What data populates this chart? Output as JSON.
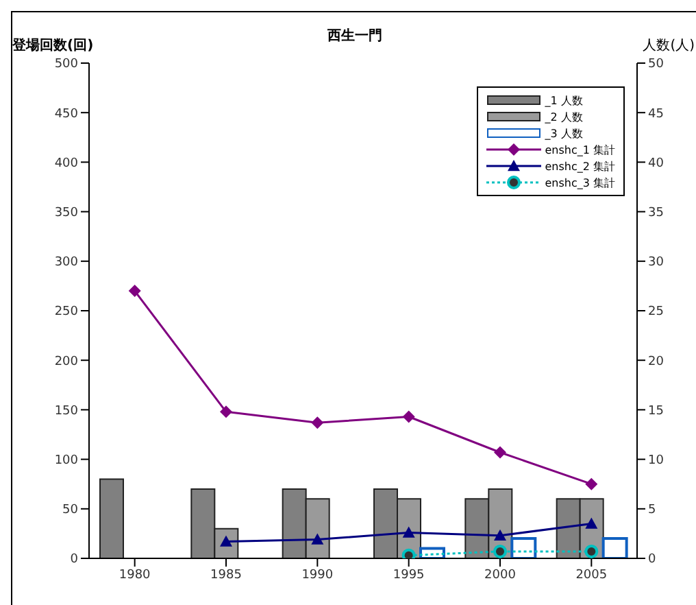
{
  "chart_data": {
    "type": "bar",
    "title": "西生一門",
    "ylabel": "登場回数(回)",
    "y2label": "人数(人)",
    "categories": [
      "1980",
      "1985",
      "1990",
      "1995",
      "2000",
      "2005"
    ],
    "series": [
      {
        "name": "_1 人数",
        "axis": "y2",
        "color": "#808080",
        "values": [
          8,
          7,
          7,
          7,
          6,
          6
        ]
      },
      {
        "name": "_2 人数",
        "axis": "y2",
        "color": "#9a9a9a",
        "values": [
          0,
          3,
          6,
          6,
          7,
          6
        ]
      },
      {
        "name": "_3 人数",
        "axis": "y2",
        "color": "#1060c0",
        "values": [
          0,
          0,
          0,
          1,
          2,
          2
        ]
      },
      {
        "name": "enshc_1 集計",
        "type": "line",
        "color": "#800080",
        "marker": "diamond",
        "line_style": "solid",
        "values": [
          270,
          148,
          137,
          143,
          107,
          75
        ]
      },
      {
        "name": "enshc_2 集計",
        "type": "line",
        "color": "#000080",
        "marker": "triangle",
        "line_style": "solid",
        "values": [
          null,
          17,
          19,
          26,
          23,
          35
        ]
      },
      {
        "name": "enshc_3 集計",
        "type": "line",
        "color": "#00c0c0",
        "marker": "circle",
        "line_style": "dotted",
        "values": [
          null,
          null,
          null,
          3,
          7,
          7
        ]
      }
    ],
    "ylim": [
      0,
      500
    ],
    "yticks": [
      0,
      50,
      100,
      150,
      200,
      250,
      300,
      350,
      400,
      450,
      500
    ],
    "y2lim": [
      0,
      50
    ],
    "y2ticks": [
      0,
      5,
      10,
      15,
      20,
      25,
      30,
      35,
      40,
      45,
      50
    ],
    "legend": "top right",
    "grid": false
  }
}
